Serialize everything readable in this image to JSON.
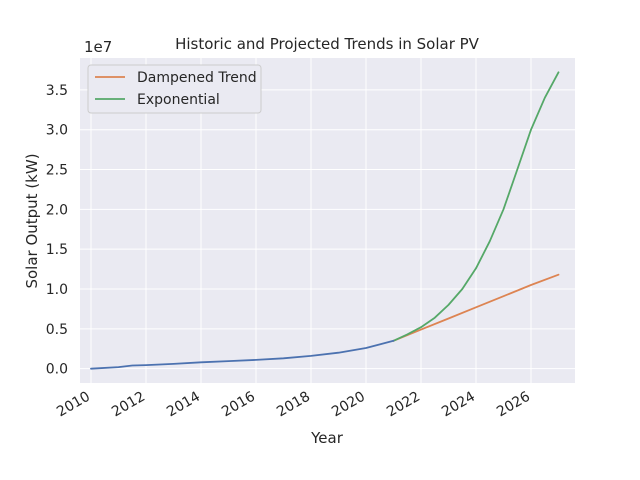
{
  "chart_data": {
    "type": "line",
    "title": "Historic and Projected Trends in Solar PV",
    "xlabel": "Year",
    "ylabel": "Solar Output (kW)",
    "y_offset_label": "1e7",
    "xlim": [
      2009.6,
      2027.6
    ],
    "ylim": [
      -0.18,
      3.9
    ],
    "x_ticks": [
      2010,
      2012,
      2014,
      2016,
      2018,
      2020,
      2022,
      2024,
      2026
    ],
    "x_tick_labels": [
      "2010",
      "2012",
      "2014",
      "2016",
      "2018",
      "2020",
      "2022",
      "2024",
      "2026"
    ],
    "y_ticks": [
      0.0,
      0.5,
      1.0,
      1.5,
      2.0,
      2.5,
      3.0,
      3.5
    ],
    "y_tick_labels": [
      "0.0",
      "0.5",
      "1.0",
      "1.5",
      "2.0",
      "2.5",
      "3.0",
      "3.5"
    ],
    "grid": true,
    "legend_position": "top-left",
    "series": [
      {
        "name": "",
        "color": "#4c72b0",
        "x": [
          2010,
          2011,
          2011.5,
          2012,
          2013,
          2014,
          2015,
          2016,
          2017,
          2018,
          2019,
          2020,
          2021
        ],
        "y": [
          0.0,
          0.02,
          0.04,
          0.045,
          0.06,
          0.08,
          0.095,
          0.11,
          0.13,
          0.16,
          0.2,
          0.26,
          0.35
        ]
      },
      {
        "name": "Dampened Trend",
        "color": "#dd8452",
        "x": [
          2021,
          2022,
          2023,
          2024,
          2025,
          2026,
          2027
        ],
        "y": [
          0.35,
          0.49,
          0.63,
          0.77,
          0.91,
          1.05,
          1.18
        ]
      },
      {
        "name": "Exponential",
        "color": "#55a868",
        "x": [
          2021,
          2021.5,
          2022,
          2022.5,
          2023,
          2023.5,
          2024,
          2024.5,
          2025,
          2025.5,
          2026,
          2026.5,
          2027
        ],
        "y": [
          0.35,
          0.43,
          0.52,
          0.64,
          0.8,
          1.0,
          1.26,
          1.6,
          2.0,
          2.5,
          3.0,
          3.4,
          3.72
        ]
      }
    ]
  }
}
